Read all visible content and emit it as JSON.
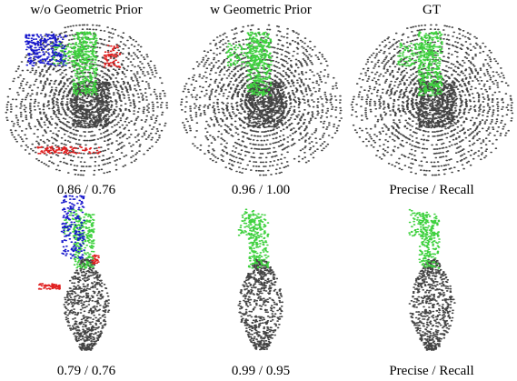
{
  "columns": [
    "w/o Geometric Prior",
    "w Geometric Prior",
    "GT"
  ],
  "rows": [
    {
      "captions": [
        "0.86 / 0.76",
        "0.96 / 1.00",
        "Precise / Recall"
      ]
    },
    {
      "captions": [
        "0.79 / 0.76",
        "0.99 / 0.95",
        "Precise / Recall"
      ]
    }
  ]
}
